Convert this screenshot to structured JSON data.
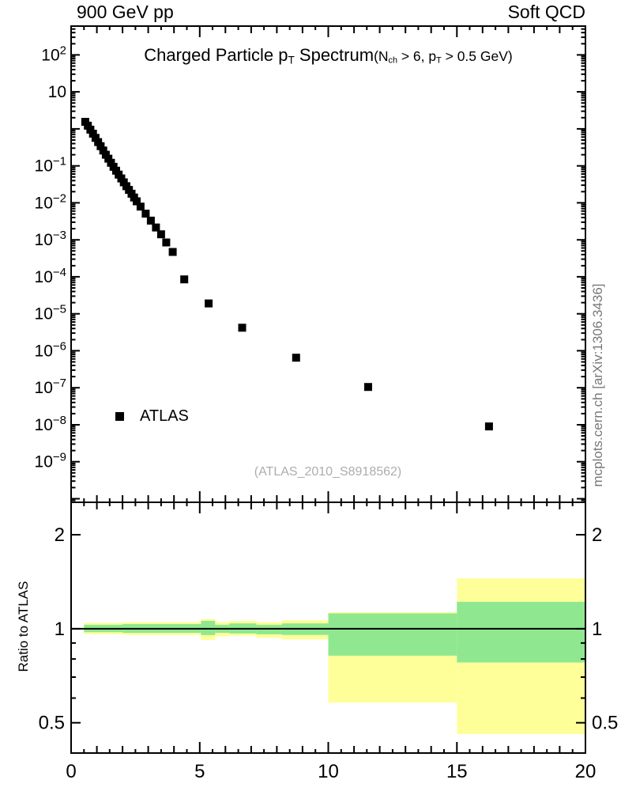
{
  "header": {
    "left": "900 GeV pp",
    "right": "Soft QCD"
  },
  "side_note": "mcplots.cern.ch [arXiv:1306.3436]",
  "chart_data": [
    {
      "type": "scatter",
      "panel": "spectrum",
      "title": "Charged Particle pT Spectrum (Nch > 6, pT > 0.5 GeV)",
      "title_parts": [
        {
          "t": "Charged Particle p"
        },
        {
          "t": "T",
          "sub": true
        },
        {
          "t": " Spectrum"
        }
      ],
      "suffix_parts": [
        {
          "t": "(N"
        },
        {
          "t": "ch",
          "sub": true
        },
        {
          "t": " > 6, p"
        },
        {
          "t": "T",
          "sub": true
        },
        {
          "t": " > 0.5 GeV)"
        }
      ],
      "legend": [
        {
          "label": "ATLAS",
          "marker": "black-filled-square"
        }
      ],
      "annotation": "(ATLAS_2010_S8918562)",
      "xlim": [
        0,
        20
      ],
      "ylog": true,
      "ylim": [
        8e-11,
        600
      ],
      "yticks": [
        [
          100,
          "10^2"
        ],
        [
          10,
          "10"
        ],
        [
          0.1,
          "10^-1"
        ],
        [
          0.01,
          "10^-2"
        ],
        [
          0.001,
          "10^-3"
        ],
        [
          0.0001,
          "10^-4"
        ],
        [
          1e-05,
          "10^-5"
        ],
        [
          1e-06,
          "10^-6"
        ],
        [
          1e-07,
          "10^-7"
        ],
        [
          1e-08,
          "10^-8"
        ],
        [
          1e-09,
          "10^-9"
        ]
      ],
      "points": [
        [
          0.55,
          1.55
        ],
        [
          0.65,
          1.22
        ],
        [
          0.75,
          0.95
        ],
        [
          0.85,
          0.74
        ],
        [
          0.95,
          0.57
        ],
        [
          1.05,
          0.44
        ],
        [
          1.15,
          0.34
        ],
        [
          1.25,
          0.26
        ],
        [
          1.35,
          0.2
        ],
        [
          1.45,
          0.156
        ],
        [
          1.55,
          0.121
        ],
        [
          1.65,
          0.094
        ],
        [
          1.75,
          0.074
        ],
        [
          1.85,
          0.058
        ],
        [
          1.95,
          0.0455
        ],
        [
          2.05,
          0.0358
        ],
        [
          2.15,
          0.0282
        ],
        [
          2.25,
          0.0223
        ],
        [
          2.35,
          0.0176
        ],
        [
          2.45,
          0.0139
        ],
        [
          2.55,
          0.011
        ],
        [
          2.7,
          0.0079
        ],
        [
          2.9,
          0.0051
        ],
        [
          3.1,
          0.0033
        ],
        [
          3.3,
          0.00215
        ],
        [
          3.5,
          0.00141
        ],
        [
          3.7,
          0.00085
        ],
        [
          3.95,
          0.00047
        ],
        [
          4.4,
          8.5e-05
        ],
        [
          5.35,
          1.9e-05
        ],
        [
          6.65,
          4.2e-06
        ],
        [
          8.75,
          6.5e-07
        ],
        [
          11.55,
          1.05e-07
        ],
        [
          16.25,
          9e-09
        ]
      ]
    },
    {
      "type": "band",
      "panel": "ratio",
      "ylabel": "Ratio to ATLAS",
      "ylog": true,
      "ylim": [
        0.4,
        2.54
      ],
      "ref_line": 1,
      "yticks": [
        2,
        1,
        0.5
      ],
      "ytick_labels": [
        "2",
        "1",
        "0.5"
      ],
      "yticks_minor": [
        0.6,
        0.7,
        0.8,
        0.9
      ],
      "xticks": [
        0,
        5,
        10,
        15,
        20
      ],
      "xtick_labels": [
        "0",
        "5",
        "10",
        "15",
        "20"
      ],
      "colors": {
        "yellow": "#ffff99",
        "green": "#8fe88f"
      },
      "segments": [
        {
          "x": [
            0.5,
            2.0
          ],
          "yellow": [
            0.96,
            1.045
          ],
          "green": [
            0.975,
            1.03
          ]
        },
        {
          "x": [
            2.0,
            5.05
          ],
          "yellow": [
            0.955,
            1.05
          ],
          "green": [
            0.97,
            1.035
          ]
        },
        {
          "x": [
            5.05,
            5.6
          ],
          "yellow": [
            0.92,
            1.075
          ],
          "green": [
            0.955,
            1.06
          ]
        },
        {
          "x": [
            5.6,
            6.15
          ],
          "yellow": [
            0.945,
            1.05
          ],
          "green": [
            0.97,
            1.03
          ]
        },
        {
          "x": [
            6.15,
            7.2
          ],
          "yellow": [
            0.95,
            1.06
          ],
          "green": [
            0.965,
            1.04
          ]
        },
        {
          "x": [
            7.2,
            8.2
          ],
          "yellow": [
            0.935,
            1.05
          ],
          "green": [
            0.96,
            1.03
          ]
        },
        {
          "x": [
            8.2,
            10.0
          ],
          "yellow": [
            0.925,
            1.065
          ],
          "green": [
            0.955,
            1.04
          ]
        },
        {
          "x": [
            10.0,
            15.0
          ],
          "yellow": [
            0.58,
            1.13
          ],
          "green": [
            0.82,
            1.12
          ]
        },
        {
          "x": [
            15.0,
            20.0
          ],
          "yellow": [
            0.46,
            1.45
          ],
          "green": [
            0.78,
            1.22
          ]
        }
      ]
    }
  ]
}
